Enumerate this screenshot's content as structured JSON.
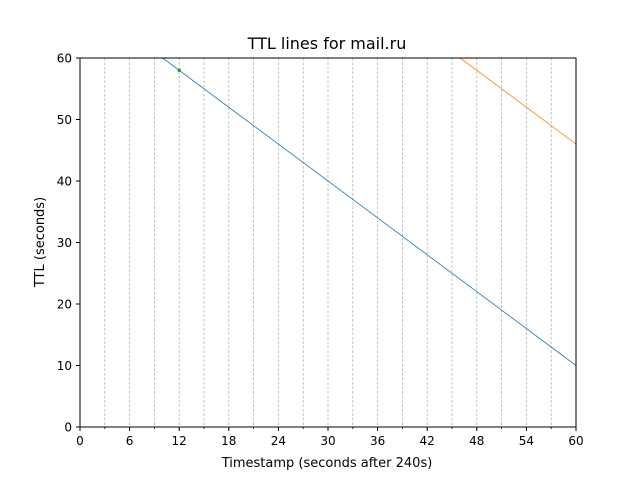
{
  "chart_data": {
    "type": "line",
    "title": "TTL lines for mail.ru",
    "xlabel": "Timestamp (seconds after 240s)",
    "ylabel": "TTL (seconds)",
    "xlim": [
      0,
      60
    ],
    "ylim": [
      0,
      60
    ],
    "x_major_ticks": [
      0,
      6,
      12,
      18,
      24,
      30,
      36,
      42,
      48,
      54,
      60
    ],
    "x_minor_gridlines": [
      3,
      6,
      9,
      12,
      15,
      18,
      21,
      24,
      27,
      30,
      33,
      36,
      39,
      42,
      45,
      48,
      51,
      54,
      57
    ],
    "y_ticks": [
      0,
      10,
      20,
      30,
      40,
      50,
      60
    ],
    "grid": "vertical dashed",
    "legend": "none",
    "series": [
      {
        "x": [
          10,
          60
        ],
        "y": [
          60,
          10
        ],
        "color": "#1f77b4",
        "kind": "line"
      },
      {
        "x": [
          46,
          60
        ],
        "y": [
          60,
          46
        ],
        "color": "#ff7f0e",
        "kind": "line"
      },
      {
        "x": [
          12
        ],
        "y": [
          58
        ],
        "color": "#2ca02c",
        "kind": "point"
      }
    ]
  },
  "colors": {
    "axis": "#000000",
    "grid": "#b0b0b0",
    "background": "#ffffff"
  }
}
